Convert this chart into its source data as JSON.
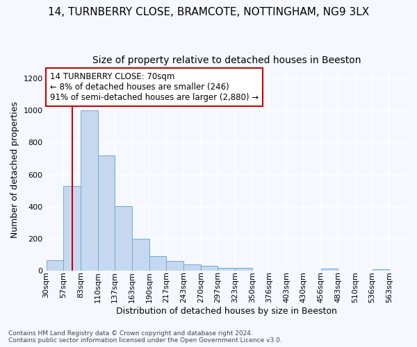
{
  "title1": "14, TURNBERRY CLOSE, BRAMCOTE, NOTTINGHAM, NG9 3LX",
  "title2": "Size of property relative to detached houses in Beeston",
  "xlabel": "Distribution of detached houses by size in Beeston",
  "ylabel": "Number of detached properties",
  "footnote": "Contains HM Land Registry data © Crown copyright and database right 2024.\nContains public sector information licensed under the Open Government Licence v3.0.",
  "bin_labels": [
    "30sqm",
    "57sqm",
    "83sqm",
    "110sqm",
    "137sqm",
    "163sqm",
    "190sqm",
    "217sqm",
    "243sqm",
    "270sqm",
    "297sqm",
    "323sqm",
    "350sqm",
    "376sqm",
    "403sqm",
    "430sqm",
    "456sqm",
    "483sqm",
    "510sqm",
    "536sqm",
    "563sqm"
  ],
  "bar_heights": [
    65,
    530,
    1000,
    720,
    405,
    198,
    90,
    60,
    40,
    32,
    17,
    17,
    0,
    0,
    0,
    0,
    14,
    0,
    0,
    8,
    0
  ],
  "bar_color": "#c5d8f0",
  "bar_edgecolor": "#6fa8d6",
  "annotation_line_bin_index": 1.5,
  "ylim": [
    0,
    1260
  ],
  "yticks": [
    0,
    200,
    400,
    600,
    800,
    1000,
    1200
  ],
  "annotation_box_text": "14 TURNBERRY CLOSE: 70sqm\n← 8% of detached houses are smaller (246)\n91% of semi-detached houses are larger (2,880) →",
  "annotation_box_color": "white",
  "annotation_box_edgecolor": "#cc0000",
  "red_line_color": "#cc0000",
  "fig_background": "#f5f8ff",
  "plot_background": "#f5f8ff",
  "grid_color": "white",
  "title1_fontsize": 11,
  "title2_fontsize": 10,
  "xlabel_fontsize": 9,
  "ylabel_fontsize": 9,
  "tick_fontsize": 8,
  "annotation_fontsize": 8.5,
  "footnote_fontsize": 6.5
}
